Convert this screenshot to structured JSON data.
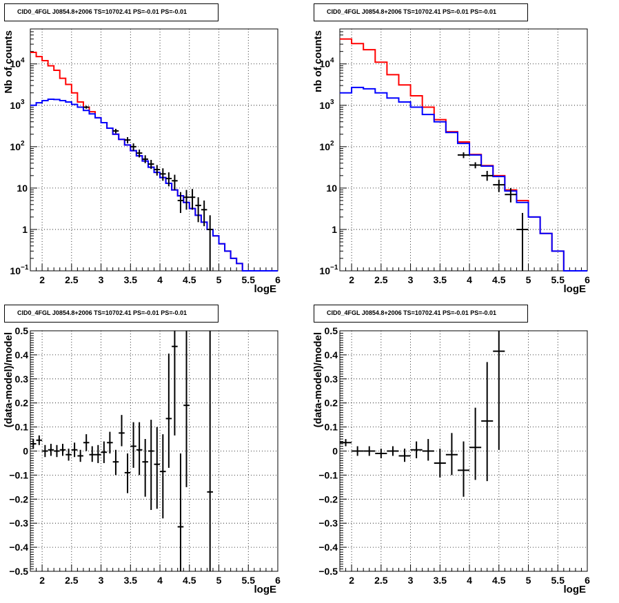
{
  "panel_title": "CID0_4FGL J0854.8+2006 TS=10702.41 PS=-0.01 PS=-0.01",
  "colors": {
    "model_total": "#ff0000",
    "model_source": "#0000ff",
    "data": "#000000",
    "grid": "#000000"
  },
  "chart_data": [
    {
      "type": "line",
      "panel": "top-left",
      "title": "CID0_4FGL J0854.8+2006 TS=10702.41 PS=-0.01 PS=-0.01",
      "xlabel": "logE",
      "ylabel": "Nb of counts",
      "xlim": [
        1.8,
        6.0
      ],
      "ylim": [
        0.1,
        70000
      ],
      "log_y": true,
      "grid": true,
      "x_ticks": [
        "2",
        "2.5",
        "3",
        "3.5",
        "4",
        "4.5",
        "5",
        "5.5",
        "6"
      ],
      "y_ticks": [
        "10^-1",
        "1",
        "10",
        "10^2",
        "10^3",
        "10^4"
      ],
      "bin_edges": [
        1.8,
        1.9,
        2.0,
        2.1,
        2.2,
        2.3,
        2.4,
        2.5,
        2.6,
        2.7,
        2.8,
        2.9,
        3.0,
        3.1,
        3.2,
        3.3,
        3.4,
        3.5,
        3.6,
        3.7,
        3.8,
        3.9,
        4.0,
        4.1,
        4.2,
        4.3,
        4.4,
        4.5,
        4.6,
        4.7,
        4.8,
        4.9,
        5.0,
        5.1,
        5.2,
        5.3,
        5.4,
        5.5,
        5.6,
        5.7,
        5.8,
        5.9,
        6.0
      ],
      "series": [
        {
          "values": [
            19000,
            15000,
            12000,
            9000,
            7000,
            4500,
            3200,
            2000,
            1200,
            900,
            700,
            500,
            380,
            280,
            200,
            150,
            110,
            80,
            60,
            45,
            32,
            24,
            18,
            13,
            9,
            6.5,
            4.5,
            3.2,
            2.2,
            1.5,
            1.0,
            0.7,
            0.45,
            0.3,
            0.2,
            0.15,
            0.1,
            0.1,
            0.1,
            0.1,
            0.1,
            0.1
          ]
        },
        {
          "values": [
            1000,
            1150,
            1300,
            1400,
            1380,
            1300,
            1200,
            1050,
            900,
            750,
            620,
            500,
            380,
            280,
            200,
            150,
            110,
            80,
            60,
            45,
            32,
            24,
            18,
            13,
            9,
            6.5,
            4.5,
            3.2,
            2.2,
            1.5,
            1.0,
            0.7,
            0.45,
            0.3,
            0.2,
            0.15,
            0.1,
            0.1,
            0.1,
            0.1,
            0.1,
            0.1
          ]
        }
      ],
      "points": [
        {
          "x": 2.75,
          "y": 900,
          "xerr": 0.05,
          "ylo": 830,
          "yhi": 970
        },
        {
          "x": 3.25,
          "y": 240,
          "xerr": 0.05,
          "ylo": 210,
          "yhi": 270
        },
        {
          "x": 3.45,
          "y": 145,
          "xerr": 0.05,
          "ylo": 120,
          "yhi": 170
        },
        {
          "x": 3.55,
          "y": 100,
          "xerr": 0.05,
          "ylo": 80,
          "yhi": 120
        },
        {
          "x": 3.65,
          "y": 70,
          "xerr": 0.05,
          "ylo": 55,
          "yhi": 85
        },
        {
          "x": 3.75,
          "y": 50,
          "xerr": 0.05,
          "ylo": 40,
          "yhi": 62
        },
        {
          "x": 3.85,
          "y": 38,
          "xerr": 0.05,
          "ylo": 29,
          "yhi": 48
        },
        {
          "x": 3.95,
          "y": 28,
          "xerr": 0.05,
          "ylo": 20,
          "yhi": 36
        },
        {
          "x": 4.05,
          "y": 22,
          "xerr": 0.05,
          "ylo": 15,
          "yhi": 30
        },
        {
          "x": 4.15,
          "y": 17,
          "xerr": 0.05,
          "ylo": 11,
          "yhi": 24
        },
        {
          "x": 4.25,
          "y": 15,
          "xerr": 0.05,
          "ylo": 9,
          "yhi": 21
        },
        {
          "x": 4.35,
          "y": 5,
          "xerr": 0.05,
          "ylo": 2.5,
          "yhi": 8
        },
        {
          "x": 4.45,
          "y": 6,
          "xerr": 0.05,
          "ylo": 3,
          "yhi": 9
        },
        {
          "x": 4.55,
          "y": 6,
          "xerr": 0.05,
          "ylo": 3,
          "yhi": 9.5
        },
        {
          "x": 4.65,
          "y": 3.8,
          "xerr": 0.05,
          "ylo": 1.5,
          "yhi": 6
        },
        {
          "x": 4.75,
          "y": 3,
          "xerr": 0.05,
          "ylo": 1.2,
          "yhi": 5
        },
        {
          "x": 4.85,
          "y": 1,
          "xerr": 0.05,
          "ylo": 0.1,
          "yhi": 2.2
        }
      ]
    },
    {
      "type": "line",
      "panel": "top-right",
      "title": "CID0_4FGL J0854.8+2006 TS=10702.41 PS=-0.01 PS=-0.01",
      "xlabel": "logE",
      "ylabel": "nb of counts",
      "xlim": [
        1.8,
        6.0
      ],
      "ylim": [
        0.1,
        70000
      ],
      "log_y": true,
      "grid": true,
      "x_ticks": [
        "2",
        "2.5",
        "3",
        "3.5",
        "4",
        "4.5",
        "5",
        "5.5",
        "6"
      ],
      "y_ticks": [
        "10^-1",
        "1",
        "10",
        "10^2",
        "10^3",
        "10^4"
      ],
      "bin_edges": [
        1.8,
        2.0,
        2.2,
        2.4,
        2.6,
        2.8,
        3.0,
        3.2,
        3.4,
        3.6,
        3.8,
        4.0,
        4.2,
        4.4,
        4.6,
        4.8,
        5.0,
        5.2,
        5.4,
        5.6,
        5.8,
        6.0
      ],
      "series": [
        {
          "values": [
            40000,
            31000,
            22000,
            11000,
            5500,
            3100,
            1700,
            900,
            450,
            230,
            130,
            65,
            35,
            20,
            9,
            5,
            2,
            0.8,
            0.3,
            0.1,
            0.1
          ]
        },
        {
          "values": [
            2000,
            2700,
            2500,
            2000,
            1500,
            1200,
            900,
            600,
            400,
            220,
            120,
            63,
            34,
            19,
            8.5,
            4.5,
            2,
            0.8,
            0.3,
            0.1,
            0.1
          ]
        }
      ],
      "points": [
        {
          "x": 3.9,
          "y": 63,
          "xerr": 0.1,
          "ylo": 53,
          "yhi": 73
        },
        {
          "x": 4.1,
          "y": 36,
          "xerr": 0.1,
          "ylo": 30,
          "yhi": 42
        },
        {
          "x": 4.3,
          "y": 20,
          "xerr": 0.1,
          "ylo": 15,
          "yhi": 26
        },
        {
          "x": 4.5,
          "y": 12,
          "xerr": 0.1,
          "ylo": 8,
          "yhi": 16
        },
        {
          "x": 4.7,
          "y": 7,
          "xerr": 0.1,
          "ylo": 4.5,
          "yhi": 10
        },
        {
          "x": 4.9,
          "y": 1,
          "xerr": 0.1,
          "ylo": 0.1,
          "yhi": 2.5
        }
      ]
    },
    {
      "type": "scatter",
      "panel": "bottom-left",
      "title": "CID0_4FGL J0854.8+2006 TS=10702.41 PS=-0.01 PS=-0.01",
      "xlabel": "logE",
      "ylabel": "(data-model)/model",
      "xlim": [
        1.8,
        6.0
      ],
      "ylim": [
        -0.5,
        0.5
      ],
      "log_y": false,
      "grid": true,
      "x_ticks": [
        "2",
        "2.5",
        "3",
        "3.5",
        "4",
        "4.5",
        "5",
        "5.5",
        "6"
      ],
      "y_ticks": [
        "-0.5",
        "-0.4",
        "-0.3",
        "-0.2",
        "-0.1",
        "0",
        "0.1",
        "0.2",
        "0.3",
        "0.4",
        "0.5"
      ],
      "points": [
        {
          "x": 1.85,
          "y": 0.03,
          "xerr": 0.05,
          "ylo": 0.01,
          "yhi": 0.05
        },
        {
          "x": 1.95,
          "y": 0.045,
          "xerr": 0.05,
          "ylo": 0.025,
          "yhi": 0.065
        },
        {
          "x": 2.05,
          "y": 0.0,
          "xerr": 0.05,
          "ylo": -0.025,
          "yhi": 0.025
        },
        {
          "x": 2.15,
          "y": 0.005,
          "xerr": 0.05,
          "ylo": -0.02,
          "yhi": 0.03
        },
        {
          "x": 2.25,
          "y": 0.0,
          "xerr": 0.05,
          "ylo": -0.025,
          "yhi": 0.025
        },
        {
          "x": 2.35,
          "y": 0.005,
          "xerr": 0.05,
          "ylo": -0.02,
          "yhi": 0.03
        },
        {
          "x": 2.45,
          "y": -0.015,
          "xerr": 0.05,
          "ylo": -0.04,
          "yhi": 0.01
        },
        {
          "x": 2.55,
          "y": 0.005,
          "xerr": 0.05,
          "ylo": -0.025,
          "yhi": 0.035
        },
        {
          "x": 2.65,
          "y": -0.02,
          "xerr": 0.05,
          "ylo": -0.045,
          "yhi": 0.005
        },
        {
          "x": 2.75,
          "y": 0.035,
          "xerr": 0.05,
          "ylo": 0.0,
          "yhi": 0.07
        },
        {
          "x": 2.85,
          "y": -0.015,
          "xerr": 0.05,
          "ylo": -0.045,
          "yhi": 0.02
        },
        {
          "x": 2.95,
          "y": -0.015,
          "xerr": 0.05,
          "ylo": -0.05,
          "yhi": 0.025
        },
        {
          "x": 3.05,
          "y": -0.005,
          "xerr": 0.05,
          "ylo": -0.05,
          "yhi": 0.04
        },
        {
          "x": 3.15,
          "y": 0.035,
          "xerr": 0.05,
          "ylo": -0.01,
          "yhi": 0.08
        },
        {
          "x": 3.25,
          "y": -0.045,
          "xerr": 0.05,
          "ylo": -0.1,
          "yhi": 0.005
        },
        {
          "x": 3.35,
          "y": 0.075,
          "xerr": 0.05,
          "ylo": 0.02,
          "yhi": 0.15
        },
        {
          "x": 3.45,
          "y": -0.09,
          "xerr": 0.05,
          "ylo": -0.175,
          "yhi": -0.01
        },
        {
          "x": 3.55,
          "y": 0.02,
          "xerr": 0.05,
          "ylo": -0.07,
          "yhi": 0.12
        },
        {
          "x": 3.65,
          "y": 0.005,
          "xerr": 0.05,
          "ylo": -0.1,
          "yhi": 0.12
        },
        {
          "x": 3.75,
          "y": -0.045,
          "xerr": 0.05,
          "ylo": -0.19,
          "yhi": 0.05
        },
        {
          "x": 3.85,
          "y": 0.0,
          "xerr": 0.05,
          "ylo": -0.245,
          "yhi": 0.13
        },
        {
          "x": 3.95,
          "y": -0.055,
          "xerr": 0.05,
          "ylo": -0.24,
          "yhi": 0.1
        },
        {
          "x": 4.05,
          "y": -0.085,
          "xerr": 0.05,
          "ylo": -0.28,
          "yhi": 0.07
        },
        {
          "x": 4.15,
          "y": 0.135,
          "xerr": 0.05,
          "ylo": -0.07,
          "yhi": 0.405
        },
        {
          "x": 4.25,
          "y": 0.435,
          "xerr": 0.05,
          "ylo": 0.065,
          "yhi": 0.5
        },
        {
          "x": 4.35,
          "y": -0.315,
          "xerr": 0.05,
          "ylo": -0.5,
          "yhi": -0.01
        },
        {
          "x": 4.45,
          "y": 0.19,
          "xerr": 0.05,
          "ylo": -0.15,
          "yhi": 0.5
        },
        {
          "x": 4.85,
          "y": -0.17,
          "xerr": 0.05,
          "ylo": -0.5,
          "yhi": 0.5
        }
      ]
    },
    {
      "type": "scatter",
      "panel": "bottom-right",
      "title": "CID0_4FGL J0854.8+2006 TS=10702.41 PS=-0.01 PS=-0.01",
      "xlabel": "logE",
      "ylabel": "(data-model)/model",
      "xlim": [
        1.8,
        6.0
      ],
      "ylim": [
        -0.5,
        0.5
      ],
      "log_y": false,
      "grid": true,
      "x_ticks": [
        "2",
        "2.5",
        "3",
        "3.5",
        "4",
        "4.5",
        "5",
        "5.5",
        "6"
      ],
      "y_ticks": [
        "-0.5",
        "-0.4",
        "-0.3",
        "-0.2",
        "-0.1",
        "0",
        "0.1",
        "0.2",
        "0.3",
        "0.4",
        "0.5"
      ],
      "points": [
        {
          "x": 1.9,
          "y": 0.035,
          "xerr": 0.1,
          "ylo": 0.02,
          "yhi": 0.05
        },
        {
          "x": 2.1,
          "y": 0.0,
          "xerr": 0.1,
          "ylo": -0.02,
          "yhi": 0.02
        },
        {
          "x": 2.3,
          "y": 0.0,
          "xerr": 0.1,
          "ylo": -0.02,
          "yhi": 0.02
        },
        {
          "x": 2.5,
          "y": -0.01,
          "xerr": 0.1,
          "ylo": -0.03,
          "yhi": 0.01
        },
        {
          "x": 2.7,
          "y": 0.0,
          "xerr": 0.1,
          "ylo": -0.02,
          "yhi": 0.02
        },
        {
          "x": 2.9,
          "y": -0.02,
          "xerr": 0.1,
          "ylo": -0.045,
          "yhi": 0.01
        },
        {
          "x": 3.1,
          "y": 0.005,
          "xerr": 0.1,
          "ylo": -0.03,
          "yhi": 0.04
        },
        {
          "x": 3.3,
          "y": 0.0,
          "xerr": 0.1,
          "ylo": -0.04,
          "yhi": 0.05
        },
        {
          "x": 3.5,
          "y": -0.05,
          "xerr": 0.1,
          "ylo": -0.11,
          "yhi": 0.01
        },
        {
          "x": 3.7,
          "y": -0.015,
          "xerr": 0.1,
          "ylo": -0.1,
          "yhi": 0.075
        },
        {
          "x": 3.9,
          "y": -0.08,
          "xerr": 0.1,
          "ylo": -0.19,
          "yhi": 0.04
        },
        {
          "x": 4.1,
          "y": 0.015,
          "xerr": 0.1,
          "ylo": -0.12,
          "yhi": 0.18
        },
        {
          "x": 4.3,
          "y": 0.125,
          "xerr": 0.1,
          "ylo": -0.125,
          "yhi": 0.37
        },
        {
          "x": 4.5,
          "y": 0.415,
          "xerr": 0.1,
          "ylo": 0.005,
          "yhi": 0.5
        }
      ]
    }
  ]
}
